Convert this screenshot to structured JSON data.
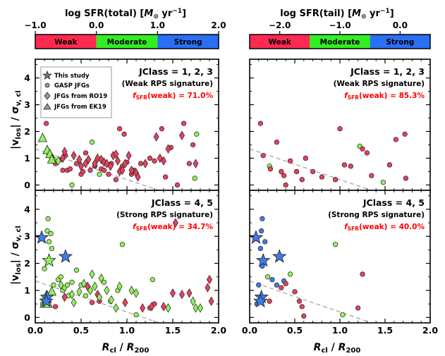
{
  "chart_data": {
    "type": "scatter",
    "xlabel_main": "R",
    "xlabel_sub": "cl",
    "xlabel_sep": " / ",
    "xlabel_main2": "R",
    "xlabel_sub2": "200",
    "ylabel_main": "|v",
    "ylabel_sub": "los",
    "ylabel_mid": "| / σ",
    "ylabel_sub2": "v, cl",
    "xlim": [
      0.0,
      2.0
    ],
    "ylim": [
      -0.2,
      4.7
    ],
    "xticks": [
      "0.0",
      "0.5",
      "1.0",
      "1.5",
      "2.0"
    ],
    "yticks": [
      "0",
      "1",
      "2",
      "3",
      "4"
    ],
    "legend_title": "",
    "legend": [
      "This study",
      "GASP JFGs",
      "JFGs from RO19",
      "JFGs from EK19"
    ],
    "colorbars": [
      {
        "title_pre": "log SFR(total) [",
        "title_unit_a": "M",
        "title_unit_b": "⊙",
        "title_unit_c": " yr",
        "title_unit_d": "−1",
        "title_post": "]",
        "ticks": [
          "−1.0",
          "0.0",
          "1.0",
          "2.0"
        ],
        "segments": [
          {
            "label": "Weak",
            "color": "#ff2a50"
          },
          {
            "label": "Moderate",
            "color": "#33ee22"
          },
          {
            "label": "Strong",
            "color": "#2a6ff5"
          }
        ]
      },
      {
        "title_pre": "log SFR(tail) [",
        "title_unit_a": "M",
        "title_unit_b": "⊙",
        "title_unit_c": " yr",
        "title_unit_d": "−1",
        "title_post": "]",
        "ticks": [
          "−2.0",
          "−1.0",
          "0.0"
        ],
        "segments": [
          {
            "label": "Weak",
            "color": "#ff2a50"
          },
          {
            "label": "Moderate",
            "color": "#33ee22"
          },
          {
            "label": "Strong",
            "color": "#2a6ff5"
          }
        ]
      }
    ],
    "panels": [
      {
        "id": "top-left",
        "class_label": "JClass = 1, 2, 3",
        "rps_label": "(Weak RPS signature)",
        "fsfr_label": "f",
        "fsfr_sub": "SFR",
        "fsfr_value": "(weak) = 71.0%",
        "circles": [
          [
            0.12,
            2.3,
            "r"
          ],
          [
            0.15,
            1.1,
            "r"
          ],
          [
            0.2,
            0.95,
            "g"
          ],
          [
            0.22,
            0.8,
            "r"
          ],
          [
            0.28,
            0.95,
            "r"
          ],
          [
            0.3,
            0.55,
            "r"
          ],
          [
            0.33,
            1.1,
            "r"
          ],
          [
            0.35,
            0.55,
            "r"
          ],
          [
            0.38,
            0.6,
            "r"
          ],
          [
            0.4,
            0.0,
            "g"
          ],
          [
            0.45,
            0.8,
            "r"
          ],
          [
            0.5,
            0.4,
            "r"
          ],
          [
            0.52,
            0.5,
            "r"
          ],
          [
            0.55,
            1.2,
            "r"
          ],
          [
            0.6,
            0.55,
            "r"
          ],
          [
            0.62,
            1.6,
            "g"
          ],
          [
            0.65,
            0.7,
            "r"
          ],
          [
            0.7,
            0.4,
            "g"
          ],
          [
            0.72,
            0.6,
            "r"
          ],
          [
            0.75,
            0.55,
            "r"
          ],
          [
            0.8,
            0.4,
            "r"
          ],
          [
            0.83,
            0.8,
            "r"
          ],
          [
            0.88,
            0.2,
            "r"
          ],
          [
            0.92,
            2.1,
            "r"
          ],
          [
            0.95,
            0.7,
            "r"
          ],
          [
            0.97,
            1.9,
            "r"
          ],
          [
            1.0,
            0.85,
            "r"
          ],
          [
            1.05,
            0.4,
            "r"
          ],
          [
            1.08,
            0.55,
            "r"
          ],
          [
            1.15,
            0.8,
            "r"
          ],
          [
            1.25,
            1.0,
            "r"
          ],
          [
            1.3,
            0.9,
            "r"
          ],
          [
            1.38,
            2.1,
            "r"
          ],
          [
            1.42,
            0.3,
            "r"
          ],
          [
            1.48,
            1.4,
            "r"
          ],
          [
            1.55,
            0.0,
            "r"
          ],
          [
            1.62,
            2.3,
            "r"
          ],
          [
            1.68,
            0.8,
            "r"
          ],
          [
            1.72,
            1.5,
            "r"
          ],
          [
            1.74,
            0.25,
            "g"
          ],
          [
            1.76,
            1.9,
            "g"
          ]
        ],
        "diamonds": [
          [
            0.18,
            1.05,
            "r"
          ],
          [
            0.25,
            0.9,
            "g"
          ],
          [
            0.3,
            1.0,
            "r"
          ],
          [
            0.32,
            1.25,
            "r"
          ],
          [
            0.42,
            1.1,
            "r"
          ],
          [
            0.48,
            0.95,
            "r"
          ],
          [
            0.5,
            0.7,
            "r"
          ],
          [
            0.55,
            0.8,
            "r"
          ],
          [
            0.58,
            0.95,
            "r"
          ],
          [
            0.65,
            0.8,
            "r"
          ],
          [
            0.68,
            1.0,
            "r"
          ],
          [
            0.72,
            0.95,
            "r"
          ],
          [
            0.75,
            0.85,
            "r"
          ],
          [
            0.78,
            0.8,
            "r"
          ],
          [
            0.82,
            0.7,
            "r"
          ],
          [
            0.85,
            1.1,
            "r"
          ],
          [
            0.88,
            1.15,
            "r"
          ],
          [
            0.9,
            0.9,
            "r"
          ],
          [
            0.92,
            0.5,
            "r"
          ],
          [
            0.95,
            0.55,
            "r"
          ],
          [
            0.98,
            0.8,
            "r"
          ],
          [
            1.02,
            1.1,
            "r"
          ],
          [
            1.05,
            0.55,
            "r"
          ],
          [
            1.1,
            0.45,
            "r"
          ],
          [
            1.12,
            0.3,
            "r"
          ],
          [
            1.2,
            0.8,
            "r"
          ],
          [
            1.32,
            1.8,
            "r"
          ],
          [
            1.36,
            1.0,
            "r"
          ],
          [
            1.4,
            0.9,
            "r"
          ],
          [
            1.45,
            1.35,
            "r"
          ],
          [
            1.6,
            1.85,
            "r"
          ],
          [
            1.75,
            0.8,
            "r"
          ]
        ],
        "stars": [],
        "triangles": [
          [
            0.08,
            1.75,
            "g"
          ],
          [
            0.13,
            1.3,
            "g"
          ],
          [
            0.16,
            1.15,
            "g"
          ],
          [
            0.18,
            0.95,
            "g"
          ]
        ]
      },
      {
        "id": "top-right",
        "class_label": "JClass = 1, 2, 3",
        "rps_label": "(Weak RPS signature)",
        "fsfr_label": "f",
        "fsfr_sub": "SFR",
        "fsfr_value": "(weak) = 85.3%",
        "circles": [
          [
            0.12,
            2.3,
            "r"
          ],
          [
            0.15,
            1.1,
            "r"
          ],
          [
            0.22,
            0.7,
            "g"
          ],
          [
            0.23,
            0.6,
            "r"
          ],
          [
            0.3,
            1.6,
            "r"
          ],
          [
            0.35,
            0.5,
            "r"
          ],
          [
            0.38,
            0.35,
            "r"
          ],
          [
            0.4,
            0.0,
            "r"
          ],
          [
            0.45,
            0.9,
            "r"
          ],
          [
            0.52,
            0.5,
            "r"
          ],
          [
            0.58,
            0.2,
            "r"
          ],
          [
            0.62,
            1.0,
            "r"
          ],
          [
            0.7,
            0.5,
            "r"
          ],
          [
            0.8,
            0.3,
            "r"
          ],
          [
            0.95,
            0.2,
            "r"
          ],
          [
            1.0,
            2.1,
            "r"
          ],
          [
            1.05,
            0.75,
            "r"
          ],
          [
            1.12,
            0.7,
            "r"
          ],
          [
            1.22,
            1.45,
            "g"
          ],
          [
            1.25,
            1.35,
            "r"
          ],
          [
            1.3,
            1.2,
            "r"
          ],
          [
            1.35,
            0.35,
            "r"
          ],
          [
            1.48,
            0.1,
            "g"
          ],
          [
            1.55,
            0.75,
            "r"
          ],
          [
            1.62,
            1.7,
            "r"
          ],
          [
            1.72,
            1.9,
            "r"
          ],
          [
            1.73,
            0.25,
            "r"
          ]
        ],
        "diamonds": [],
        "stars": [],
        "triangles": []
      },
      {
        "id": "bottom-left",
        "class_label": "JClass = 4, 5",
        "rps_label": "(Strong RPS signature)",
        "fsfr_label": "f",
        "fsfr_sub": "SFR",
        "fsfr_value": "(weak) = 34.7%",
        "circles": [
          [
            0.13,
            3.2,
            "g"
          ],
          [
            0.15,
            2.8,
            "g"
          ],
          [
            0.17,
            3.1,
            "g"
          ],
          [
            0.18,
            2.55,
            "g"
          ],
          [
            0.2,
            1.2,
            "g"
          ],
          [
            0.25,
            1.4,
            "g"
          ],
          [
            0.28,
            1.5,
            "g"
          ],
          [
            0.3,
            1.0,
            "g"
          ],
          [
            0.32,
            1.1,
            "g"
          ],
          [
            0.35,
            1.2,
            "g"
          ],
          [
            0.36,
            0.8,
            "g"
          ],
          [
            0.4,
            1.3,
            "g"
          ],
          [
            0.45,
            1.75,
            "g"
          ],
          [
            0.5,
            1.2,
            "g"
          ],
          [
            0.55,
            0.8,
            "g"
          ],
          [
            0.6,
            1.0,
            "g"
          ],
          [
            0.62,
            0.55,
            "r"
          ],
          [
            0.7,
            0.6,
            "r"
          ],
          [
            0.75,
            1.3,
            "g"
          ],
          [
            0.82,
            0.6,
            "g"
          ],
          [
            0.9,
            1.0,
            "g"
          ],
          [
            0.95,
            2.7,
            "g"
          ],
          [
            1.1,
            0.1,
            "g"
          ],
          [
            1.25,
            0.35,
            "r"
          ],
          [
            1.28,
            1.4,
            "g"
          ],
          [
            1.3,
            0.5,
            "r"
          ],
          [
            0.1,
            1.8,
            "g"
          ],
          [
            0.14,
            0.6,
            "g"
          ],
          [
            0.08,
            0.5,
            "g"
          ],
          [
            0.14,
            3.65,
            "g"
          ],
          [
            0.22,
            0.4,
            "r"
          ]
        ],
        "diamonds": [
          [
            0.28,
            1.2,
            "g"
          ],
          [
            0.32,
            0.75,
            "r"
          ],
          [
            0.4,
            0.85,
            "g"
          ],
          [
            0.42,
            0.55,
            "g"
          ],
          [
            0.48,
            0.95,
            "g"
          ],
          [
            0.53,
            1.25,
            "g"
          ],
          [
            0.57,
            1.15,
            "r"
          ],
          [
            0.6,
            1.0,
            "g"
          ],
          [
            0.62,
            1.6,
            "g"
          ],
          [
            0.65,
            1.15,
            "g"
          ],
          [
            0.68,
            0.85,
            "r"
          ],
          [
            0.7,
            0.75,
            "g"
          ],
          [
            0.72,
            1.45,
            "g"
          ],
          [
            0.78,
            1.0,
            "g"
          ],
          [
            0.83,
            0.65,
            "g"
          ],
          [
            0.88,
            0.35,
            "g"
          ],
          [
            0.92,
            1.15,
            "g"
          ],
          [
            0.98,
            0.55,
            "r"
          ],
          [
            1.05,
            1.0,
            "g"
          ],
          [
            1.1,
            0.9,
            "g"
          ],
          [
            1.17,
            0.35,
            "r"
          ],
          [
            1.27,
            0.4,
            "r"
          ],
          [
            1.4,
            0.4,
            "r"
          ],
          [
            1.45,
            0.35,
            "g"
          ],
          [
            1.5,
            0.9,
            "r"
          ],
          [
            1.53,
            3.5,
            "r"
          ],
          [
            1.6,
            0.85,
            "r"
          ],
          [
            1.68,
            0.9,
            "r"
          ],
          [
            1.72,
            0.6,
            "g"
          ],
          [
            1.75,
            0.35,
            "g"
          ],
          [
            1.8,
            0.35,
            "g"
          ],
          [
            1.88,
            1.1,
            "r"
          ],
          [
            1.9,
            1.4,
            "r"
          ],
          [
            1.92,
            0.6,
            "r"
          ]
        ],
        "stars": [
          [
            0.07,
            2.95,
            "b"
          ],
          [
            0.15,
            2.1,
            "g"
          ],
          [
            0.33,
            2.25,
            "b"
          ],
          [
            0.13,
            0.75,
            "b"
          ],
          [
            0.12,
            0.6,
            "b"
          ]
        ],
        "triangles": [
          [
            0.1,
            0.5,
            "g"
          ],
          [
            0.14,
            0.5,
            "g"
          ],
          [
            0.18,
            0.95,
            "g"
          ],
          [
            0.12,
            0.8,
            "g"
          ]
        ]
      },
      {
        "id": "bottom-right",
        "class_label": "JClass = 4, 5",
        "rps_label": "(Strong RPS signature)",
        "fsfr_label": "f",
        "fsfr_sub": "SFR",
        "fsfr_value": "(weak) = 40.0%",
        "circles": [
          [
            0.14,
            3.65,
            "b"
          ],
          [
            0.13,
            3.2,
            "b"
          ],
          [
            0.17,
            2.8,
            "b"
          ],
          [
            0.12,
            2.55,
            "b"
          ],
          [
            0.14,
            1.9,
            "b"
          ],
          [
            0.2,
            1.5,
            "g"
          ],
          [
            0.25,
            1.4,
            "b"
          ],
          [
            0.3,
            1.2,
            "b"
          ],
          [
            0.35,
            1.1,
            "r"
          ],
          [
            0.38,
            1.35,
            "b"
          ],
          [
            0.4,
            1.25,
            "r"
          ],
          [
            0.45,
            1.6,
            "g"
          ],
          [
            0.5,
            0.95,
            "r"
          ],
          [
            0.55,
            0.6,
            "r"
          ],
          [
            0.58,
            0.4,
            "r"
          ],
          [
            0.6,
            0.05,
            "r"
          ],
          [
            0.95,
            2.7,
            "g"
          ],
          [
            1.03,
            0.1,
            "g"
          ],
          [
            1.2,
            0.35,
            "r"
          ],
          [
            1.25,
            1.6,
            "r"
          ],
          [
            0.1,
            1.2,
            "b"
          ],
          [
            0.08,
            0.5,
            "b"
          ],
          [
            0.22,
            0.6,
            "r"
          ]
        ],
        "diamonds": [],
        "stars": [
          [
            0.07,
            2.95,
            "b"
          ],
          [
            0.15,
            2.1,
            "b"
          ],
          [
            0.33,
            2.25,
            "b"
          ],
          [
            0.13,
            0.75,
            "b"
          ],
          [
            0.12,
            0.6,
            "b"
          ]
        ],
        "triangles": []
      }
    ]
  },
  "colors": {
    "r": "#e8415e",
    "g": "#8ef25a",
    "b": "#3f7de8",
    "grid_line": "#aaaaaa",
    "fsfr": "#ff0000"
  }
}
